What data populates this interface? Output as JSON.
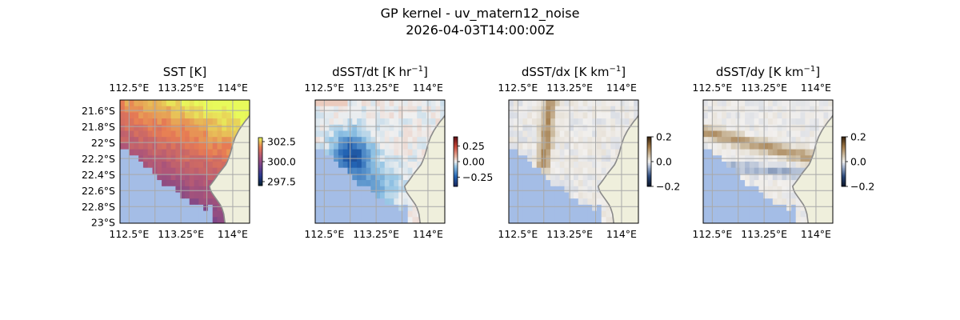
{
  "figure": {
    "title": "GP kernel - uv_matern12_noise",
    "subtitle": "2026-04-03T14:00:00Z"
  },
  "colors": {
    "land": "#efefdc",
    "ocean_mask": "#a4bde6",
    "coast": "#8a8a8a",
    "grid": "#a9a9a9"
  },
  "chart_data": [
    {
      "type": "heatmap",
      "title": "SST [K]",
      "x_ticks": [
        "112.5°E",
        "113.25°E",
        "114°E"
      ],
      "y_ticks": [
        "21.6°S",
        "21.8°S",
        "22°S",
        "22.2°S",
        "22.4°S",
        "22.6°S",
        "22.8°S",
        "23°S"
      ],
      "show_y_ticks": true,
      "colormap": "thermal",
      "colorbar": {
        "ticks": [
          "302.5",
          "300.0",
          "297.5"
        ],
        "range": [
          297.0,
          303.0
        ]
      },
      "field": {
        "kind": "sst",
        "range": [
          298.0,
          302.8
        ]
      }
    },
    {
      "type": "heatmap",
      "title": "dSST/dt [K hr",
      "title_sup": "−1",
      "title_end": "]",
      "x_ticks": [
        "112.5°E",
        "113.25°E",
        "114°E"
      ],
      "show_y_ticks": false,
      "colormap": "diverging-blue-red",
      "colorbar": {
        "ticks": [
          "0.25",
          "0.00",
          "−0.25"
        ],
        "range": [
          -0.4,
          0.4
        ]
      },
      "field": {
        "kind": "dt",
        "range": [
          -0.4,
          0.4
        ]
      }
    },
    {
      "type": "heatmap",
      "title": "dSST/dx [K km",
      "title_sup": "−1",
      "title_end": "]",
      "x_ticks": [
        "112.5°E",
        "113.25°E",
        "114°E"
      ],
      "show_y_ticks": false,
      "colormap": "diverging-blue-brown",
      "colorbar": {
        "ticks": [
          "0.2",
          "0.0",
          "−0.2"
        ],
        "range": [
          -0.2,
          0.2
        ]
      },
      "field": {
        "kind": "dx",
        "range": [
          -0.2,
          0.2
        ]
      }
    },
    {
      "type": "heatmap",
      "title": "dSST/dy [K km",
      "title_sup": "−1",
      "title_end": "]",
      "x_ticks": [
        "112.5°E",
        "113.25°E",
        "114°E"
      ],
      "show_y_ticks": false,
      "colormap": "diverging-blue-brown",
      "colorbar": {
        "ticks": [
          "0.2",
          "0.0",
          "−0.2"
        ],
        "range": [
          -0.2,
          0.2
        ]
      },
      "field": {
        "kind": "dy",
        "range": [
          -0.2,
          0.2
        ]
      }
    }
  ]
}
